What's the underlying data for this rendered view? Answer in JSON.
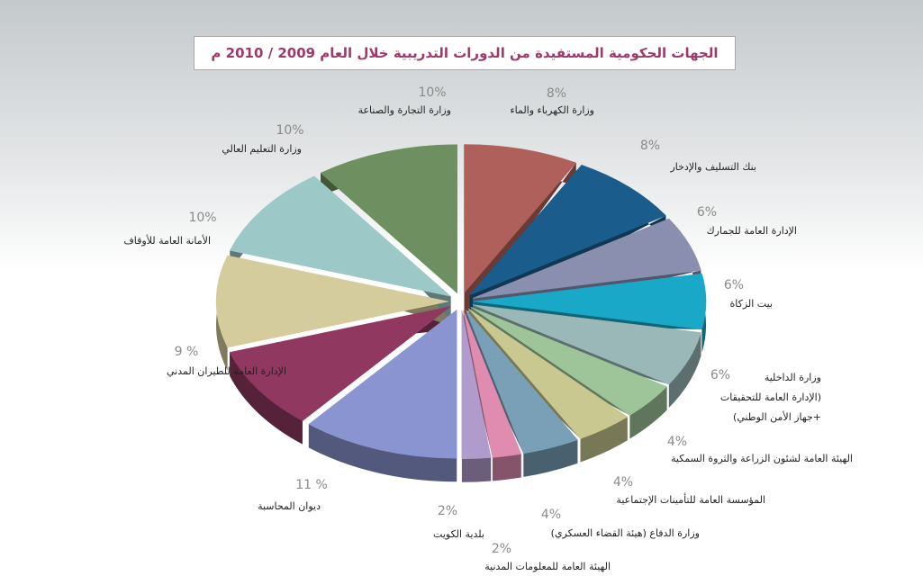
{
  "chart_data": {
    "type": "pie",
    "title": "الجهات الحكومية المستفيدة من الدورات التدريبية خلال العام 2009 / 2010 م",
    "categories": [
      "وزارة الكهرباء والماء",
      "بنك التسليف والإدخار",
      "الإدارة العامة للجمارك",
      "بيت الزكاة",
      "وزارة الداخلية\n(الإدارة العامة للتحقيقات\n+جهاز الأمن الوطني)",
      "الهيئة العامة لشئون الزراعة والثروة السمكية",
      "المؤسسة العامة للتأمينات الإجتماعية",
      "وزارة الدفاع (هيئة القضاء العسكري)",
      "الهيئة العامة للمعلومات المدنية",
      "بلدية الكويت",
      "ديوان المحاسبة",
      "الإدارة العامة للطيران المدني",
      "الأمانة العامة للأوقاف",
      "وزارة التعليم العالي",
      "وزارة التجارة والصناعة"
    ],
    "values": [
      8,
      8,
      6,
      6,
      6,
      4,
      4,
      4,
      2,
      2,
      11,
      9,
      10,
      10,
      10
    ],
    "value_labels": [
      "8%",
      "8%",
      "6%",
      "6%",
      "6%",
      "4%",
      "4%",
      "4%",
      "2%",
      "2%",
      "11 %",
      "9 %",
      "10%",
      "10%",
      "10%"
    ],
    "colors": [
      "#b0605a",
      "#1a5c8c",
      "#8a8fb0",
      "#1aa8c8",
      "#9ab8b8",
      "#9ec49a",
      "#c8c890",
      "#7aa0b8",
      "#e08cb0",
      "#b09ccc",
      "#8a94d0",
      "#903860",
      "#d4cc9c",
      "#9cc8c8",
      "#6e9060"
    ]
  }
}
